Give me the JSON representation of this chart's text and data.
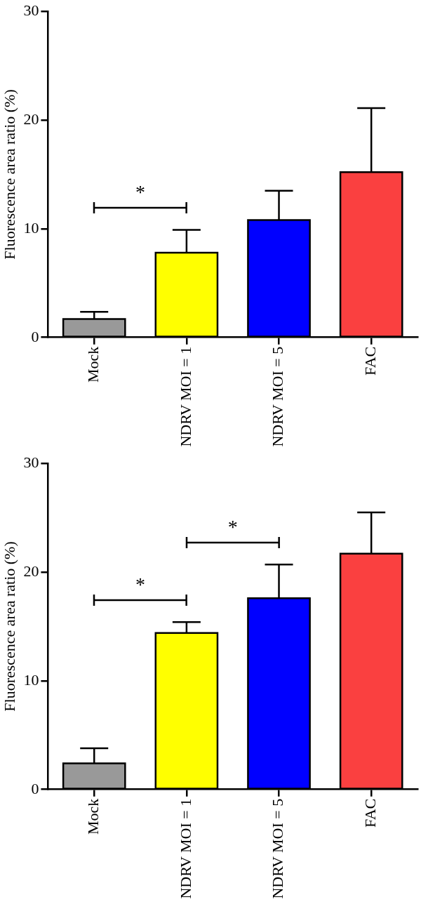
{
  "chart_data": [
    {
      "type": "bar",
      "ylabel": "Fluorescence area ratio (%)",
      "categories": [
        "Mock",
        "NDRV MOI = 1",
        "NDRV MOI = 5",
        "FAC"
      ],
      "values": [
        1.7,
        7.8,
        10.8,
        15.2
      ],
      "colors": [
        "#999999",
        "#ffff00",
        "#0000ff",
        "#fa4040"
      ],
      "errors": [
        [
          1.7,
          2.35
        ],
        [
          7.8,
          9.9
        ],
        [
          10.8,
          13.5
        ],
        [
          15.2,
          21.1
        ]
      ],
      "ylim": [
        0,
        30
      ],
      "yticks": [
        0,
        10,
        20,
        30
      ],
      "grid": false,
      "legend": false,
      "annotations": [
        "*"
      ]
    },
    {
      "type": "bar",
      "ylabel": "Fluorescence area ratio (%)",
      "categories": [
        "Mock",
        "NDRV MOI = 1",
        "NDRV MOI = 5",
        "FAC"
      ],
      "values": [
        2.4,
        14.4,
        17.6,
        21.7
      ],
      "colors": [
        "#999999",
        "#ffff00",
        "#0000ff",
        "#fa4040"
      ],
      "errors": [
        [
          2.4,
          3.8
        ],
        [
          14.4,
          15.4
        ],
        [
          17.6,
          20.7
        ],
        [
          21.7,
          25.5
        ]
      ],
      "ylim": [
        0,
        30
      ],
      "yticks": [
        0,
        10,
        20,
        30
      ],
      "grid": false,
      "legend": false,
      "annotations": [
        "*",
        "*"
      ]
    }
  ]
}
